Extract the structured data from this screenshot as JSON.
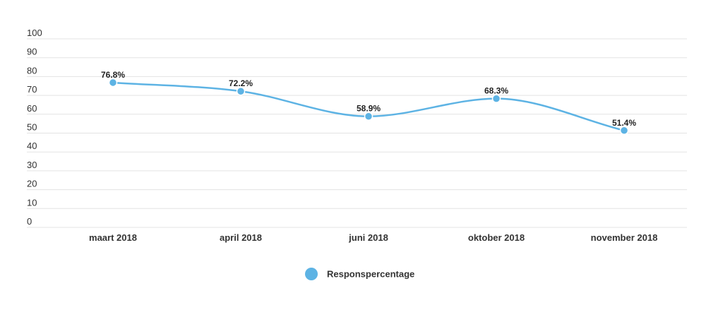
{
  "chart_data": {
    "type": "line",
    "categories": [
      "maart 2018",
      "april 2018",
      "juni 2018",
      "oktober 2018",
      "november 2018"
    ],
    "series": [
      {
        "name": "Responspercentage",
        "values": [
          76.8,
          72.2,
          58.9,
          68.3,
          51.4
        ],
        "labels": [
          "76.8%",
          "72.2%",
          "58.9%",
          "68.3%",
          "51.4%"
        ],
        "color": "#5DB3E4"
      }
    ],
    "yticks": [
      0,
      10,
      20,
      30,
      40,
      50,
      60,
      70,
      80,
      90,
      100
    ],
    "ylim": [
      0,
      100
    ],
    "grid": true,
    "legend_position": "bottom-center"
  }
}
